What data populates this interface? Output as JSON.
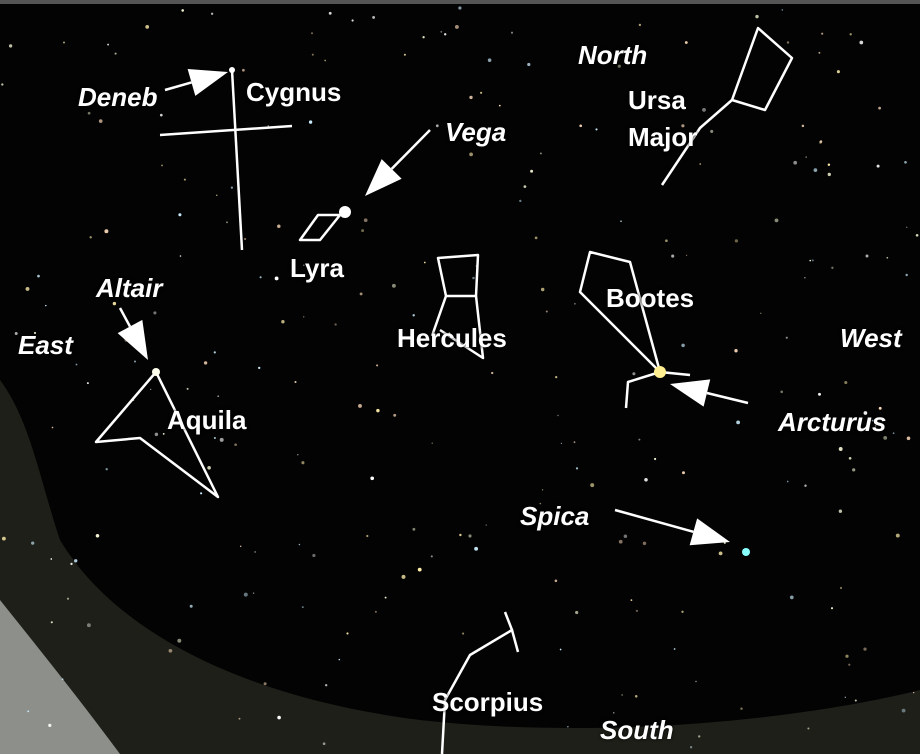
{
  "directions": {
    "north": "North",
    "south": "South",
    "east": "East",
    "west": "West"
  },
  "constellations": [
    "Cygnus",
    "Ursa Major",
    "Lyra",
    "Hercules",
    "Bootes",
    "Aquila",
    "Scorpius"
  ],
  "stars": [
    "Deneb",
    "Vega",
    "Altair",
    "Arcturus",
    "Spica"
  ]
}
